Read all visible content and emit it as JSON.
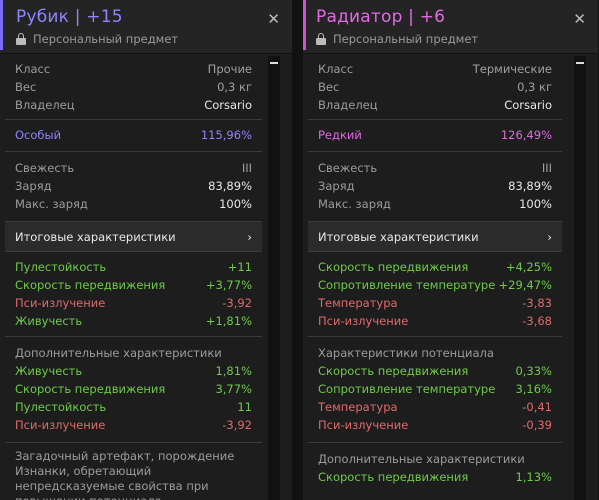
{
  "left": {
    "title": "Рубик | +15",
    "accent_color": "#7b6bff",
    "title_color": "#8e84ff",
    "subtitle": "Персональный предмет",
    "basic": [
      {
        "label": "Класс",
        "value": "Прочие"
      },
      {
        "label": "Вес",
        "value": "0,3 кг"
      },
      {
        "label": "Владелец",
        "value": "Corsario"
      }
    ],
    "rarity": {
      "label": "Особый",
      "value": "115,96%",
      "color": "#8e84ff"
    },
    "state": [
      {
        "label": "Свежесть",
        "value": "III"
      },
      {
        "label": "Заряд",
        "value": "83,89%"
      },
      {
        "label": "Макс. заряд",
        "value": "100%"
      }
    ],
    "summary_label": "Итоговые характеристики",
    "summary_arrow": "›",
    "final_stats": [
      {
        "label": "Пулестойкость",
        "value": "+11",
        "positive": true
      },
      {
        "label": "Скорость передвижения",
        "value": "+3,77%",
        "positive": true
      },
      {
        "label": "Пси-излучение",
        "value": "-3,92",
        "positive": false
      },
      {
        "label": "Живучесть",
        "value": "+1,81%",
        "positive": true
      }
    ],
    "extra_title": "Дополнительные характеристики",
    "extra_stats": [
      {
        "label": "Живучесть",
        "value": "1,81%",
        "positive": true
      },
      {
        "label": "Скорость передвижения",
        "value": "3,77%",
        "positive": true
      },
      {
        "label": "Пулестойкость",
        "value": "11",
        "positive": true
      },
      {
        "label": "Пси-излучение",
        "value": "-3,92",
        "positive": false
      }
    ],
    "description": "Загадочный артефакт, порождение Изнанки, обретающий непредсказуемые свойства при повышении потенциала."
  },
  "right": {
    "title": "Радиатор | +6",
    "accent_color": "#d24fd0",
    "title_color": "#e06be0",
    "subtitle": "Персональный предмет",
    "basic": [
      {
        "label": "Класс",
        "value": "Термические"
      },
      {
        "label": "Вес",
        "value": "0,3 кг"
      },
      {
        "label": "Владелец",
        "value": "Corsario"
      }
    ],
    "rarity": {
      "label": "Редкий",
      "value": "126,49%",
      "color": "#e06be0"
    },
    "state": [
      {
        "label": "Свежесть",
        "value": "III"
      },
      {
        "label": "Заряд",
        "value": "83,89%"
      },
      {
        "label": "Макс. заряд",
        "value": "100%"
      }
    ],
    "summary_label": "Итоговые характеристики",
    "summary_arrow": "›",
    "final_stats": [
      {
        "label": "Скорость передвижения",
        "value": "+4,25%",
        "positive": true
      },
      {
        "label": "Сопротивление температуре",
        "value": "+29,47%",
        "positive": true
      },
      {
        "label": "Температура",
        "value": "-3,83",
        "positive": false
      },
      {
        "label": "Пси-излучение",
        "value": "-3,68",
        "positive": false
      }
    ],
    "potential_title": "Характеристики потенциала",
    "potential_stats": [
      {
        "label": "Скорость передвижения",
        "value": "0,33%",
        "positive": true
      },
      {
        "label": "Сопротивление температуре",
        "value": "3,16%",
        "positive": true
      },
      {
        "label": "Температура",
        "value": "-0,41",
        "positive": false
      },
      {
        "label": "Пси-излучение",
        "value": "-0,39",
        "positive": false
      }
    ],
    "extra_title": "Дополнительные характеристики",
    "extra_stats": [
      {
        "label": "Скорость передвижения",
        "value": "1,13%",
        "positive": true
      }
    ]
  },
  "close_glyph": "✕"
}
